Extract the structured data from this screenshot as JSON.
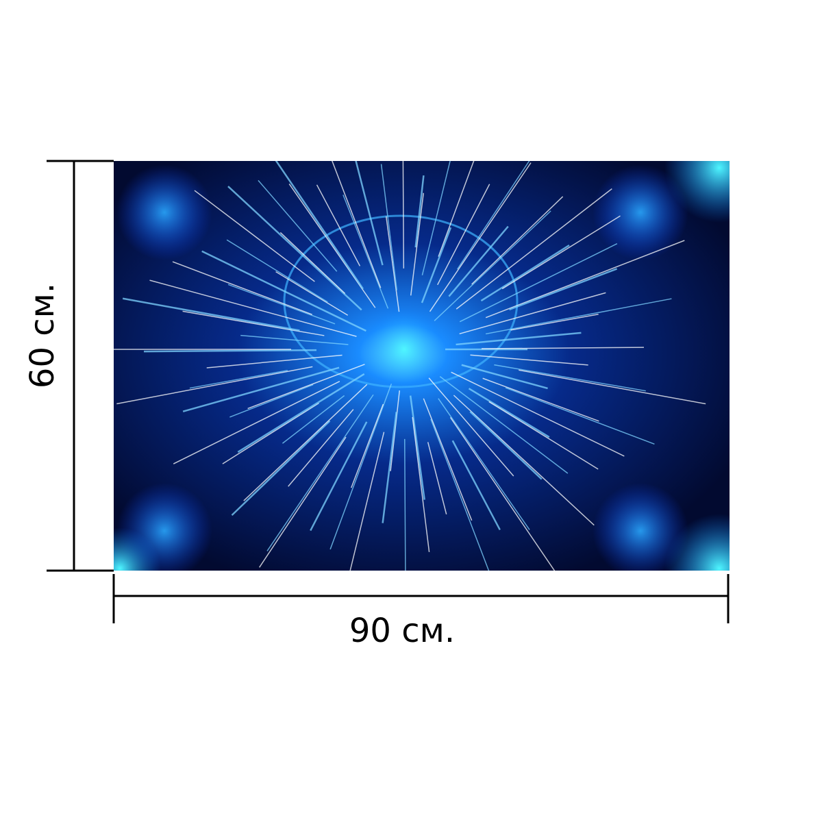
{
  "height_label": "60 см.",
  "width_label": "90 см."
}
